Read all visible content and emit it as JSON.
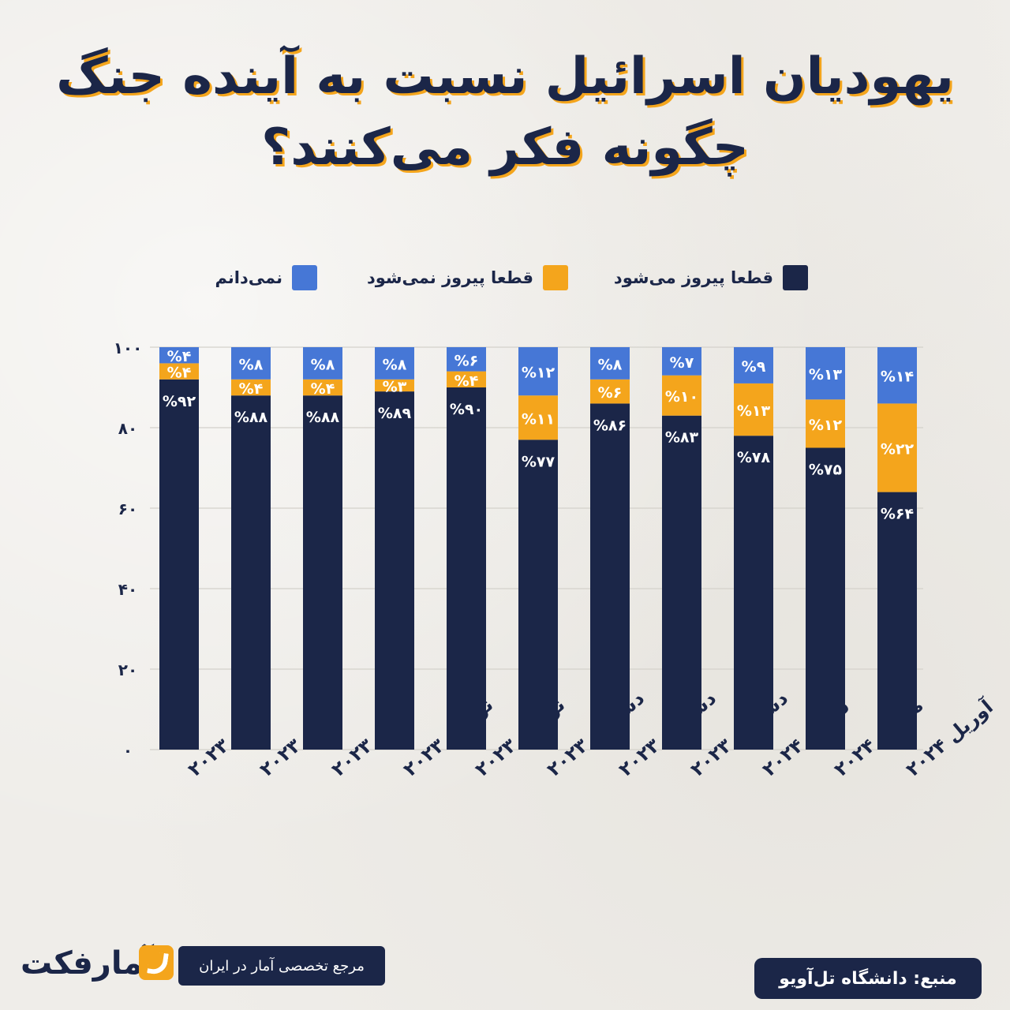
{
  "title_line1": "یهودیان اسرائیل نسبت به آینده جنگ",
  "title_line2": "چگونه فکر می‌کنند؟",
  "legend": [
    {
      "label": "قطعا پیروز می‌شود",
      "color": "#1b2648"
    },
    {
      "label": "قطعا پیروز نمی‌شود",
      "color": "#f4a51c"
    },
    {
      "label": "نمی‌دانم",
      "color": "#4677d6"
    }
  ],
  "source": "منبع: دانشگاه تل‌آویو",
  "tagline": "مرجع تخصصی آمار در ایران",
  "logo_text": "آمارفکت",
  "chart_data": {
    "type": "bar",
    "stacked": true,
    "ylim": [
      0,
      100
    ],
    "yticks": [
      "۰",
      "۲۰",
      "۴۰",
      "۶۰",
      "۸۰",
      "۱۰۰"
    ],
    "categories": [
      "اکتبر ۲۰۲۳",
      "اکتبر ۲۰۲۳",
      "اکتبر ۲۰۲۳",
      "نوامبر ۲۰۲۳",
      "نوامبر ۲۰۲۳",
      "دسامبر ۲۰۲۳",
      "دسامبر ۲۰۲۳",
      "دسامبر ۲۰۲۳",
      "فوریه ۲۰۲۴",
      "مارس ۲۰۲۴",
      "آوریل ۲۰۲۴"
    ],
    "series": [
      {
        "name": "قطعا پیروز می‌شود",
        "color": "#1b2648",
        "values": [
          92,
          88,
          88,
          89,
          90,
          77,
          86,
          83,
          78,
          75,
          64
        ],
        "labels": [
          "%۹۲",
          "%۸۸",
          "%۸۸",
          "%۸۹",
          "%۹۰",
          "%۷۷",
          "%۸۶",
          "%۸۳",
          "%۷۸",
          "%۷۵",
          "%۶۴"
        ]
      },
      {
        "name": "قطعا پیروز نمی‌شود",
        "color": "#f4a51c",
        "values": [
          4,
          4,
          4,
          3,
          4,
          11,
          6,
          10,
          13,
          12,
          22
        ],
        "labels": [
          "%۴",
          "%۴",
          "%۴",
          "%۳",
          "%۴",
          "%۱۱",
          "%۶",
          "%۱۰",
          "%۱۳",
          "%۱۲",
          "%۲۲"
        ]
      },
      {
        "name": "نمی‌دانم",
        "color": "#4677d6",
        "values": [
          4,
          8,
          8,
          8,
          6,
          12,
          8,
          7,
          9,
          13,
          14
        ],
        "labels": [
          "%۴",
          "%۸",
          "%۸",
          "%۸",
          "%۶",
          "%۱۲",
          "%۸",
          "%۷",
          "%۹",
          "%۱۳",
          "%۱۴"
        ]
      }
    ]
  }
}
